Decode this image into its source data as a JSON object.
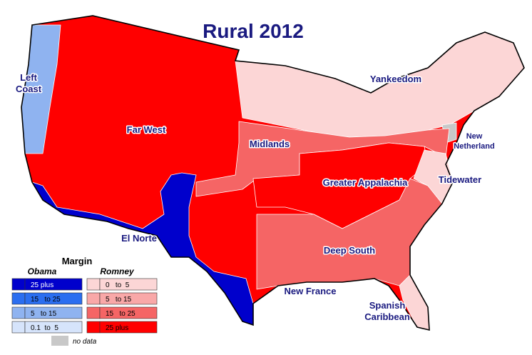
{
  "title": "Rural 2012",
  "regions": [
    {
      "lines": [
        "Left",
        "Coast"
      ]
    },
    {
      "lines": [
        "Far West"
      ]
    },
    {
      "lines": [
        "Yankeedom"
      ]
    },
    {
      "lines": [
        "New",
        "Netherland"
      ]
    },
    {
      "lines": [
        "Midlands"
      ]
    },
    {
      "lines": [
        "Greater Appalachia"
      ]
    },
    {
      "lines": [
        "Tidewater"
      ]
    },
    {
      "lines": [
        "El Norte"
      ]
    },
    {
      "lines": [
        "Deep South"
      ]
    },
    {
      "lines": [
        "New France"
      ]
    },
    {
      "lines": [
        "Spanish",
        "Caribbean"
      ]
    }
  ],
  "legend": {
    "title": "Margin",
    "groups": [
      {
        "name": "Obama",
        "items": [
          {
            "label": "25 plus",
            "color": "#0000cc"
          },
          {
            "label": "15   to 25",
            "color": "#2b6ef0"
          },
          {
            "label": "5   to 15",
            "color": "#8fb3f0"
          },
          {
            "label": "0.1  to  5",
            "color": "#d6e4fb"
          }
        ]
      },
      {
        "name": "Romney",
        "items": [
          {
            "label": "0   to  5",
            "color": "#fcd6d6"
          },
          {
            "label": "5   to 15",
            "color": "#f9a8a8"
          },
          {
            "label": "15   to 25",
            "color": "#f56565"
          },
          {
            "label": "25 plus",
            "color": "#ff0000"
          }
        ]
      }
    ],
    "no_data": {
      "label": "no data",
      "color": "#c8c8c8"
    }
  }
}
